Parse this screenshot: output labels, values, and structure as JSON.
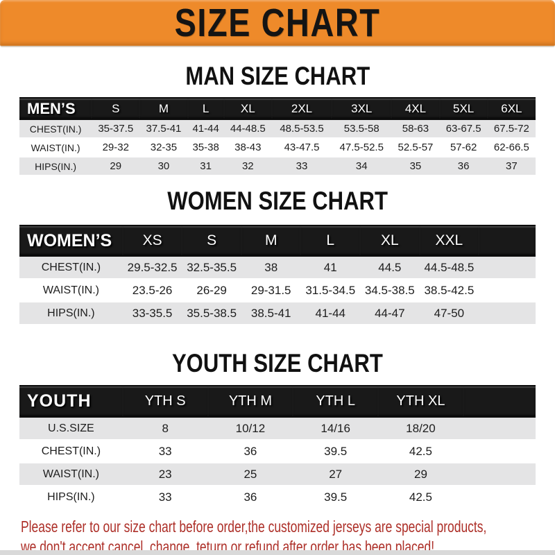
{
  "banner": {
    "title": "SIZE CHART"
  },
  "sections": [
    {
      "heading": "MAN SIZE CHART",
      "table": {
        "label_header": "MEN’S",
        "columns": [
          "S",
          "M",
          "L",
          "XL",
          "2XL",
          "3XL",
          "4XL",
          "5XL",
          "6XL"
        ],
        "rows": [
          {
            "label": "CHEST(IN.)",
            "values": [
              "35-37.5",
              "37.5-41",
              "41-44",
              "44-48.5",
              "48.5-53.5",
              "53.5-58",
              "58-63",
              "63-67.5",
              "67.5-72"
            ]
          },
          {
            "label": "WAIST(IN.)",
            "values": [
              "29-32",
              "32-35",
              "35-38",
              "38-43",
              "43-47.5",
              "47.5-52.5",
              "52.5-57",
              "57-62",
              "62-66.5"
            ]
          },
          {
            "label": "HIPS(IN.)",
            "values": [
              "29",
              "30",
              "31",
              "32",
              "33",
              "34",
              "35",
              "36",
              "37"
            ]
          }
        ]
      }
    },
    {
      "heading": "WOMEN SIZE CHART",
      "table": {
        "label_header": "WOMEN’S",
        "columns": [
          "XS",
          "S",
          "M",
          "L",
          "XL",
          "XXL"
        ],
        "rows": [
          {
            "label": "CHEST(IN.)",
            "values": [
              "29.5-32.5",
              "32.5-35.5",
              "38",
              "41",
              "44.5",
              "44.5-48.5"
            ]
          },
          {
            "label": "WAIST(IN.)",
            "values": [
              "23.5-26",
              "26-29",
              "29-31.5",
              "31.5-34.5",
              "34.5-38.5",
              "38.5-42.5"
            ]
          },
          {
            "label": "HIPS(IN.)",
            "values": [
              "33-35.5",
              "35.5-38.5",
              "38.5-41",
              "41-44",
              "44-47",
              "47-50"
            ]
          }
        ]
      }
    },
    {
      "heading": "YOUTH SIZE CHART",
      "table": {
        "label_header": "YOUTH",
        "columns": [
          "YTH S",
          "YTH M",
          "YTH L",
          "YTH XL"
        ],
        "rows": [
          {
            "label": "U.S.SIZE",
            "values": [
              "8",
              "10/12",
              "14/16",
              "18/20"
            ]
          },
          {
            "label": "CHEST(IN.)",
            "values": [
              "33",
              "36",
              "39.5",
              "42.5"
            ]
          },
          {
            "label": "WAIST(IN.)",
            "values": [
              "23",
              "25",
              "27",
              "29"
            ]
          },
          {
            "label": "HIPS(IN.)",
            "values": [
              "33",
              "36",
              "39.5",
              "42.5"
            ]
          }
        ]
      }
    }
  ],
  "disclaimer": {
    "line1": "Please refer to our size chart before order,the customized jerseys are special products,",
    "line2": "we don't accept cancel, change, teturn or refund after order has been placed!"
  },
  "colors": {
    "banner_orange": "#EE8A2A",
    "header_bar_black": "#191919",
    "row_shade_gray": "#E4E4E5",
    "disclaimer_red": "#AD2F28",
    "banner_text": "#141414"
  }
}
